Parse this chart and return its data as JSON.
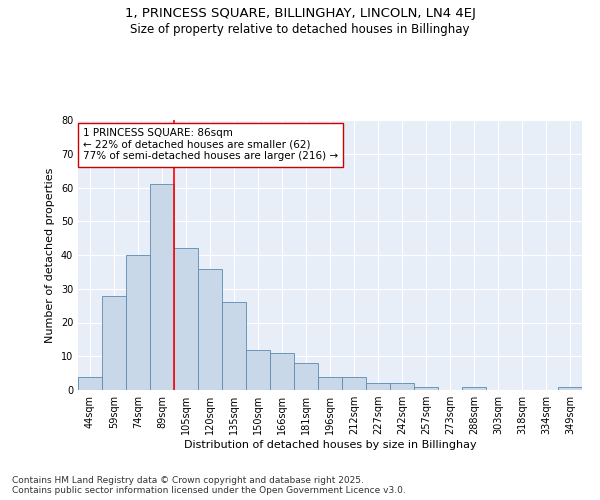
{
  "title_line1": "1, PRINCESS SQUARE, BILLINGHAY, LINCOLN, LN4 4EJ",
  "title_line2": "Size of property relative to detached houses in Billinghay",
  "xlabel": "Distribution of detached houses by size in Billinghay",
  "ylabel": "Number of detached properties",
  "categories": [
    "44sqm",
    "59sqm",
    "74sqm",
    "89sqm",
    "105sqm",
    "120sqm",
    "135sqm",
    "150sqm",
    "166sqm",
    "181sqm",
    "196sqm",
    "212sqm",
    "227sqm",
    "242sqm",
    "257sqm",
    "273sqm",
    "288sqm",
    "303sqm",
    "318sqm",
    "334sqm",
    "349sqm"
  ],
  "values": [
    4,
    28,
    40,
    61,
    42,
    36,
    26,
    12,
    11,
    8,
    4,
    4,
    2,
    2,
    1,
    0,
    1,
    0,
    0,
    0,
    1
  ],
  "bar_color": "#c8d8e8",
  "bar_edge_color": "#5a8ab0",
  "background_color": "#e8eef8",
  "grid_color": "#ffffff",
  "red_line_x": 3.5,
  "annotation_text": "1 PRINCESS SQUARE: 86sqm\n← 22% of detached houses are smaller (62)\n77% of semi-detached houses are larger (216) →",
  "annotation_box_color": "#ffffff",
  "annotation_box_edge": "#cc0000",
  "fig_background": "#ffffff",
  "ylim": [
    0,
    80
  ],
  "yticks": [
    0,
    10,
    20,
    30,
    40,
    50,
    60,
    70,
    80
  ],
  "footer_text": "Contains HM Land Registry data © Crown copyright and database right 2025.\nContains public sector information licensed under the Open Government Licence v3.0.",
  "title_fontsize": 9.5,
  "subtitle_fontsize": 8.5,
  "axis_label_fontsize": 8,
  "tick_fontsize": 7,
  "annotation_fontsize": 7.5,
  "footer_fontsize": 6.5
}
